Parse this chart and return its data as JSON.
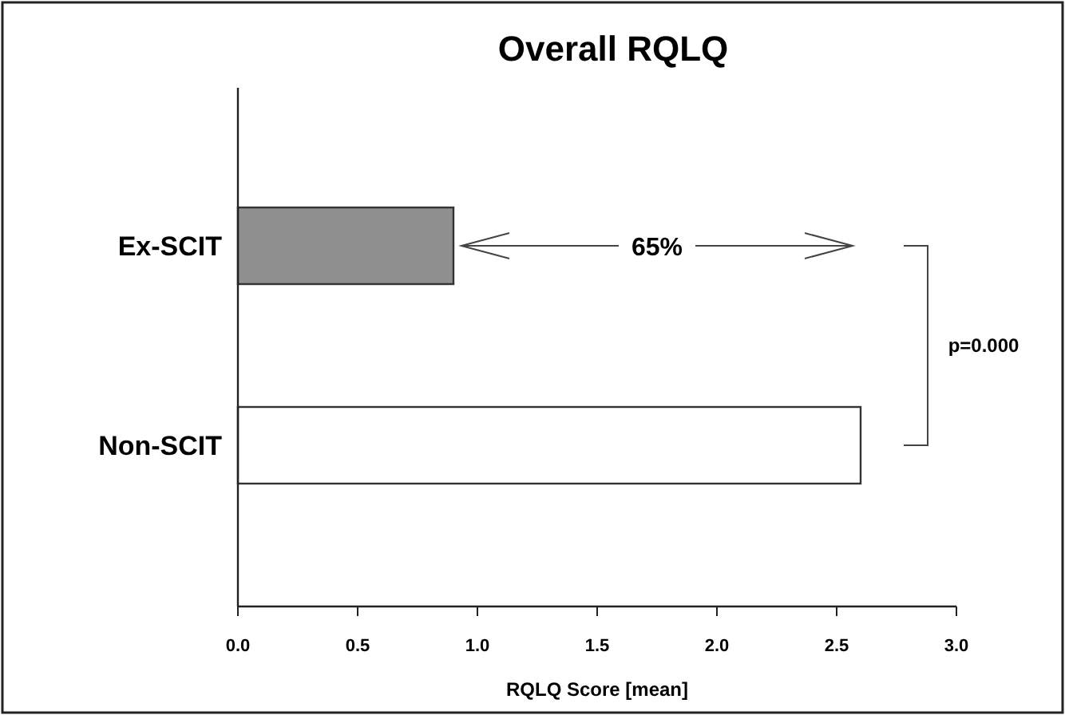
{
  "chart_data": {
    "type": "bar",
    "orientation": "horizontal",
    "title": "Overall RQLQ",
    "xlabel": "RQLQ Score [mean]",
    "categories": [
      "Ex-SCIT",
      "Non-SCIT"
    ],
    "values": [
      0.9,
      2.6
    ],
    "colors": [
      "#8f8f8f",
      "#ffffff"
    ],
    "xlim": [
      0,
      3
    ],
    "xticks": [
      {
        "value": 0,
        "label": "0.0"
      },
      {
        "value": 0.5,
        "label": "0.5"
      },
      {
        "value": 1,
        "label": "1.0"
      },
      {
        "value": 1.5,
        "label": "1.5"
      },
      {
        "value": 2,
        "label": "2.0"
      },
      {
        "value": 2.5,
        "label": "2.5"
      },
      {
        "value": 3,
        "label": "3.0"
      }
    ],
    "annotations": [
      "65%",
      "p=0.000"
    ]
  }
}
